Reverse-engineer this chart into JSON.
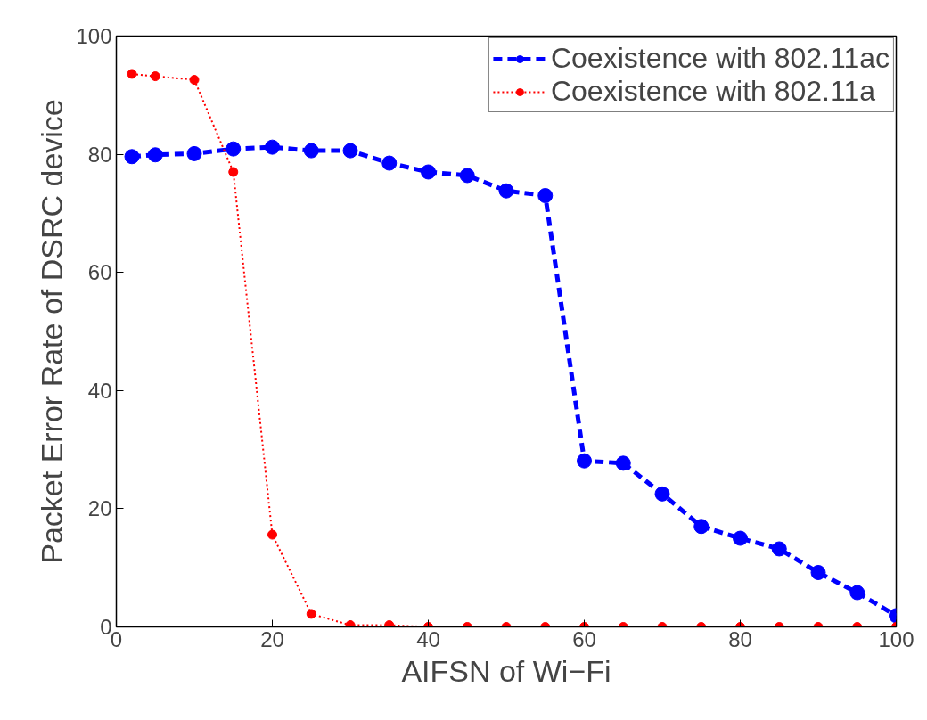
{
  "chart_data": {
    "type": "line",
    "xlabel": "AIFSN of Wi−Fi",
    "ylabel": "Packet Error Rate of DSRC device",
    "x": [
      2,
      5,
      10,
      15,
      20,
      25,
      30,
      35,
      40,
      45,
      50,
      55,
      60,
      65,
      70,
      75,
      80,
      85,
      90,
      95,
      100
    ],
    "series": [
      {
        "name": "Coexistence with 802.11ac",
        "color": "#0000ff",
        "line_style": "dashed",
        "marker": "circle",
        "values": [
          79.6,
          79.9,
          80.1,
          80.9,
          81.2,
          80.6,
          80.6,
          78.5,
          77.0,
          76.4,
          73.8,
          73.0,
          28.1,
          27.7,
          22.5,
          17.0,
          15.0,
          13.2,
          9.2,
          5.8,
          1.9
        ]
      },
      {
        "name": "Coexistence with 802.11a",
        "color": "#ff0000",
        "line_style": "dotted",
        "marker": "circle",
        "values": [
          93.6,
          93.2,
          92.6,
          77.0,
          15.6,
          2.2,
          0.3,
          0.3,
          0,
          0,
          0,
          0,
          0,
          0,
          0,
          0,
          0,
          0,
          0,
          0,
          0
        ]
      }
    ],
    "xlim": [
      0,
      100
    ],
    "ylim": [
      0,
      100
    ],
    "xticks": [
      0,
      20,
      40,
      60,
      80,
      100
    ],
    "yticks": [
      0,
      20,
      40,
      60,
      80,
      100
    ],
    "grid": false,
    "legend": "top right"
  }
}
